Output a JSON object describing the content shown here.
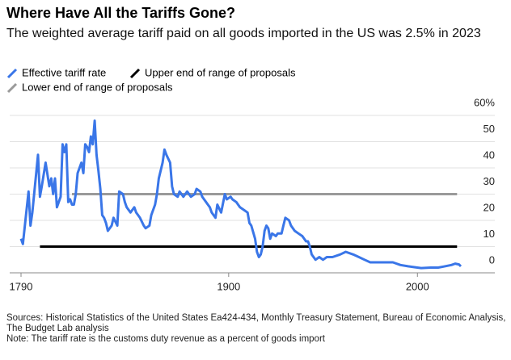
{
  "chart_data": {
    "type": "line",
    "title": "Where Have All the Tariffs Gone?",
    "subtitle": "The weighted average tariff paid on all goods imported in the US was 2.5% in 2023",
    "xlim": [
      1784,
      2041
    ],
    "xticks": [
      1790,
      1900,
      2000
    ],
    "ylim": [
      0,
      60
    ],
    "yticks": [
      0,
      10,
      20,
      30,
      40,
      50,
      {
        "value": 60,
        "label": "60%"
      }
    ],
    "grid": true,
    "series": [
      {
        "name": "Effective tariff rate",
        "color": "#3a76e8",
        "x": [
          1790,
          1791,
          1794,
          1795,
          1796,
          1799,
          1800,
          1801,
          1803,
          1805,
          1806,
          1807,
          1808,
          1809,
          1811,
          1812,
          1813,
          1814,
          1815,
          1816,
          1817,
          1818,
          1819,
          1820,
          1822,
          1823,
          1824,
          1825,
          1826,
          1827,
          1828,
          1829,
          1830,
          1831,
          1832,
          1833,
          1834,
          1835,
          1836,
          1838,
          1839,
          1841,
          1842,
          1844,
          1845,
          1846,
          1848,
          1850,
          1851,
          1853,
          1855,
          1856,
          1858,
          1859,
          1861,
          1862,
          1863,
          1865,
          1866,
          1867,
          1869,
          1870,
          1871,
          1873,
          1874,
          1875,
          1876,
          1878,
          1879,
          1880,
          1882,
          1883,
          1885,
          1886,
          1888,
          1890,
          1891,
          1893,
          1894,
          1896,
          1898,
          1899,
          1901,
          1902,
          1904,
          1906,
          1908,
          1910,
          1911,
          1912,
          1914,
          1915,
          1916,
          1917,
          1918,
          1919,
          1920,
          1921,
          1922,
          1923,
          1925,
          1926,
          1928,
          1929,
          1930,
          1932,
          1933,
          1935,
          1937,
          1939,
          1941,
          1942,
          1943,
          1944,
          1946,
          1948,
          1950,
          1952,
          1955,
          1959,
          1962,
          1966,
          1969,
          1972,
          1975,
          1977,
          1980,
          1984,
          1987,
          1991,
          1995,
          1998,
          2002,
          2007,
          2011,
          2014,
          2018,
          2020,
          2022,
          2023
        ],
        "values": [
          13,
          11,
          31,
          18,
          23,
          45,
          29,
          33,
          42,
          33,
          36,
          30,
          36,
          25,
          29,
          49,
          46,
          49,
          27,
          28,
          26,
          26,
          30,
          38,
          42,
          38,
          49,
          48,
          46,
          52,
          49,
          58,
          45,
          39,
          32,
          22,
          21,
          19,
          16,
          18,
          21,
          18,
          31,
          30,
          27,
          25,
          23,
          25,
          23,
          21,
          18,
          17,
          18,
          22,
          26,
          30,
          36,
          42,
          47,
          45,
          42,
          33,
          30,
          29,
          31,
          30,
          29,
          31,
          30,
          29,
          30,
          32,
          31,
          29,
          27,
          25,
          23,
          21,
          26,
          23,
          30,
          28,
          29,
          28,
          27,
          25,
          24,
          23,
          19,
          18,
          13,
          8,
          6,
          7,
          10,
          16,
          18,
          17,
          13,
          15,
          14,
          15,
          15,
          18,
          21,
          20,
          18,
          16,
          15,
          14,
          12,
          12,
          10,
          7,
          5,
          6,
          5,
          6,
          6,
          7,
          8,
          7,
          6,
          5,
          4,
          4,
          4,
          4,
          4,
          3,
          2.5,
          2.2,
          1.8,
          2,
          2,
          2.4,
          3,
          3.5,
          3.2,
          2.5
        ]
      },
      {
        "name": "Upper end of range of proposals",
        "color": "#000000",
        "x": [
          1800,
          2021
        ],
        "values": [
          10,
          10
        ]
      },
      {
        "name": "Lower end of range of proposals",
        "color": "#9a9a9a",
        "x": [
          1817,
          2021
        ],
        "values": [
          30,
          30
        ]
      }
    ],
    "sources": "Sources: Historical Statistics of the United States Ea424-434, Monthly Treasury Statement, Bureau of Economic Analysis, The Budget Lab analysis",
    "note": "Note: The tariff rate is the customs duty revenue as a percent of goods import"
  }
}
